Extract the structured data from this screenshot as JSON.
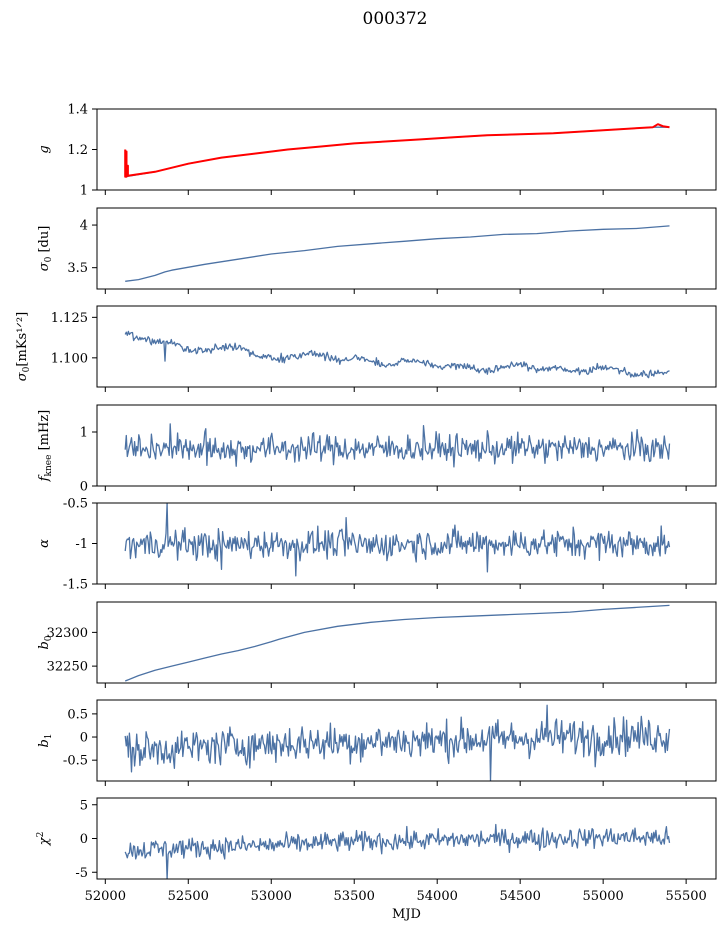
{
  "figure": {
    "title": "000372"
  },
  "colors": {
    "series": "#4c72a4",
    "highlight": "#ff0000",
    "axis": "#000000"
  },
  "chart_data": [
    {
      "type": "line",
      "ylabel": "g",
      "yticks": [
        1.0,
        1.2,
        1.4
      ],
      "ylim": [
        1.0,
        1.4
      ],
      "xlim": [
        51950,
        55680
      ],
      "style": "smooth",
      "series": [
        {
          "color": "#4c72a4",
          "x": [
            52120,
            52300,
            52500,
            52700,
            52900,
            53100,
            53300,
            53500,
            53700,
            53900,
            54100,
            54300,
            54500,
            54700,
            54900,
            55100,
            55300,
            55400
          ],
          "y": [
            1.065,
            1.09,
            1.13,
            1.16,
            1.18,
            1.2,
            1.215,
            1.23,
            1.24,
            1.25,
            1.26,
            1.27,
            1.275,
            1.28,
            1.29,
            1.3,
            1.31,
            1.31
          ]
        },
        {
          "color": "#ff0000",
          "x": [
            52120,
            52120,
            52128,
            52128,
            52136,
            52136,
            52300,
            52500,
            52700,
            52900,
            53100,
            53300,
            53500,
            53700,
            53900,
            54100,
            54300,
            54500,
            54700,
            54900,
            55100,
            55300,
            55330,
            55360,
            55400
          ],
          "y": [
            1.2,
            1.065,
            1.19,
            1.065,
            1.12,
            1.07,
            1.09,
            1.13,
            1.16,
            1.18,
            1.2,
            1.215,
            1.23,
            1.24,
            1.25,
            1.26,
            1.27,
            1.275,
            1.28,
            1.29,
            1.3,
            1.31,
            1.325,
            1.315,
            1.31
          ]
        }
      ]
    },
    {
      "type": "line",
      "ylabel": "σ0 [du]",
      "yticks": [
        3.5,
        4.0
      ],
      "ylim": [
        3.25,
        4.2
      ],
      "xlim": [
        51950,
        55680
      ],
      "style": "smooth",
      "series": [
        {
          "color": "#4c72a4",
          "x": [
            52120,
            52200,
            52300,
            52360,
            52400,
            52600,
            52800,
            53000,
            53200,
            53400,
            53600,
            53800,
            54000,
            54200,
            54400,
            54600,
            54800,
            55000,
            55200,
            55400
          ],
          "y": [
            3.34,
            3.36,
            3.41,
            3.45,
            3.47,
            3.54,
            3.6,
            3.66,
            3.7,
            3.75,
            3.78,
            3.81,
            3.84,
            3.86,
            3.89,
            3.9,
            3.93,
            3.95,
            3.96,
            3.99
          ]
        }
      ]
    },
    {
      "type": "line",
      "ylabel": "σ0[mKs^1/2]",
      "yticks": [
        1.1,
        1.125
      ],
      "ytick_labels": [
        "1.100",
        "1.125"
      ],
      "ylim": [
        1.082,
        1.132
      ],
      "xlim": [
        51950,
        55680
      ],
      "style": "noisy",
      "series": [
        {
          "color": "#4c72a4",
          "x": [
            52120,
            52200,
            52300,
            52400,
            52500,
            52600,
            52700,
            52800,
            52900,
            53000,
            53100,
            53200,
            53300,
            53400,
            53500,
            53600,
            53700,
            53800,
            53900,
            54000,
            54100,
            54200,
            54300,
            54400,
            54500,
            54600,
            54700,
            54800,
            54900,
            55000,
            55100,
            55200,
            55300,
            55400
          ],
          "y": [
            1.115,
            1.112,
            1.11,
            1.11,
            1.105,
            1.104,
            1.106,
            1.106,
            1.102,
            1.1,
            1.1,
            1.103,
            1.102,
            1.098,
            1.1,
            1.098,
            1.095,
            1.098,
            1.098,
            1.094,
            1.096,
            1.094,
            1.092,
            1.095,
            1.096,
            1.093,
            1.094,
            1.092,
            1.092,
            1.094,
            1.093,
            1.089,
            1.091,
            1.092
          ]
        }
      ]
    },
    {
      "type": "line",
      "ylabel": "fknee [mHz]",
      "yticks": [
        0,
        1
      ],
      "ylim": [
        0,
        1.5
      ],
      "xlim": [
        51950,
        55680
      ],
      "style": "noisy",
      "series": [
        {
          "color": "#4c72a4",
          "x": [
            52120,
            52400,
            52700,
            53000,
            53300,
            53600,
            53900,
            54200,
            54500,
            54800,
            55100,
            55400
          ],
          "y": [
            0.7,
            0.7,
            0.68,
            0.7,
            0.7,
            0.69,
            0.7,
            0.69,
            0.7,
            0.7,
            0.7,
            0.68
          ]
        }
      ]
    },
    {
      "type": "line",
      "ylabel": "α",
      "yticks": [
        -1.5,
        -1.0,
        -0.5
      ],
      "ylim": [
        -1.5,
        -0.5
      ],
      "xlim": [
        51950,
        55680
      ],
      "style": "noisy",
      "series": [
        {
          "color": "#4c72a4",
          "x": [
            52120,
            52400,
            52700,
            53000,
            53300,
            53600,
            53900,
            54200,
            54500,
            54800,
            55100,
            55400
          ],
          "y": [
            -1.02,
            -1.0,
            -1.02,
            -1.0,
            -1.0,
            -1.02,
            -1.0,
            -1.0,
            -1.0,
            -1.0,
            -1.0,
            -1.0
          ]
        }
      ]
    },
    {
      "type": "line",
      "ylabel": "b0",
      "yticks": [
        32250,
        32300
      ],
      "ylim": [
        32225,
        32345
      ],
      "xlim": [
        51950,
        55680
      ],
      "style": "smooth",
      "series": [
        {
          "color": "#4c72a4",
          "x": [
            52120,
            52200,
            52300,
            52400,
            52500,
            52600,
            52700,
            52800,
            52900,
            53000,
            53050,
            53200,
            53400,
            53600,
            53800,
            54000,
            54200,
            54400,
            54600,
            54800,
            55000,
            55200,
            55400
          ],
          "y": [
            32228,
            32236,
            32244,
            32250,
            32256,
            32262,
            32268,
            32273,
            32279,
            32286,
            32290,
            32300,
            32309,
            32315,
            32319,
            32322,
            32324,
            32326,
            32328,
            32330,
            32334,
            32337,
            32340
          ]
        }
      ]
    },
    {
      "type": "line",
      "ylabel": "b1",
      "yticks": [
        -0.5,
        0.0,
        0.5
      ],
      "ylim": [
        -0.95,
        0.8
      ],
      "xlim": [
        51950,
        55680
      ],
      "style": "noisy",
      "series": [
        {
          "color": "#4c72a4",
          "x": [
            52120,
            52400,
            52700,
            53000,
            53300,
            53600,
            53900,
            54200,
            54500,
            54800,
            55100,
            55400
          ],
          "y": [
            -0.3,
            -0.25,
            -0.2,
            -0.15,
            -0.12,
            -0.1,
            -0.08,
            -0.05,
            -0.03,
            0.0,
            0.02,
            0.03
          ]
        }
      ]
    },
    {
      "type": "line",
      "ylabel": "χ2",
      "yticks": [
        -5,
        0,
        5
      ],
      "ylim": [
        -6,
        6
      ],
      "xlim": [
        51950,
        55680
      ],
      "xticks": [
        52000,
        52500,
        53000,
        53500,
        54000,
        54500,
        55000,
        55500
      ],
      "xlabel": "MJD",
      "style": "noisy",
      "series": [
        {
          "color": "#4c72a4",
          "x": [
            52120,
            52400,
            52700,
            53000,
            53300,
            53600,
            53900,
            54200,
            54500,
            54800,
            55100,
            55400
          ],
          "y": [
            -1.8,
            -1.5,
            -1.2,
            -1.0,
            -0.6,
            -0.4,
            -0.3,
            -0.1,
            0.0,
            0.1,
            0.2,
            0.1
          ]
        }
      ]
    }
  ]
}
